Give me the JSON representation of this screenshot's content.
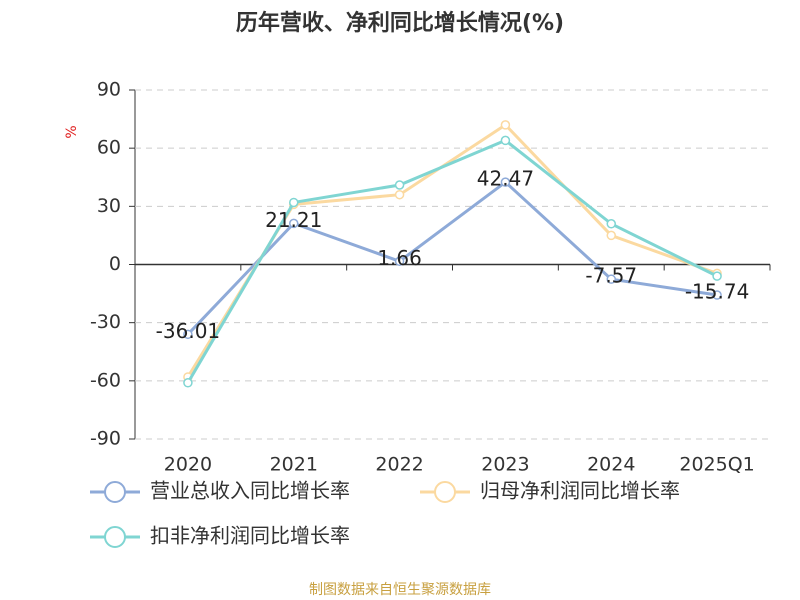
{
  "chart_data": {
    "type": "line",
    "title": "历年营收、净利同比增长情况(%)",
    "y_label": "%",
    "categories": [
      "2020",
      "2021",
      "2022",
      "2023",
      "2024",
      "2025Q1"
    ],
    "series": [
      {
        "name": "营业总收入同比增长率",
        "color": "#8eaad8",
        "values": [
          -36.01,
          21.21,
          1.66,
          42.47,
          -7.57,
          -15.74
        ],
        "show_labels": true
      },
      {
        "name": "归母净利润同比增长率",
        "color": "#fbd9a0",
        "values": [
          -58,
          31,
          36,
          72,
          15,
          -4.6
        ],
        "show_labels": false
      },
      {
        "name": "扣非净利润同比增长率",
        "color": "#7fd5d2",
        "values": [
          -61,
          32,
          41,
          64,
          21,
          -6
        ],
        "show_labels": false
      }
    ],
    "ylim": [
      -90,
      90
    ],
    "yticks": [
      -90,
      -60,
      -30,
      0,
      30,
      60,
      90
    ],
    "grid": true,
    "legend": "bottom",
    "source": "制图数据来自恒生聚源数据库"
  }
}
